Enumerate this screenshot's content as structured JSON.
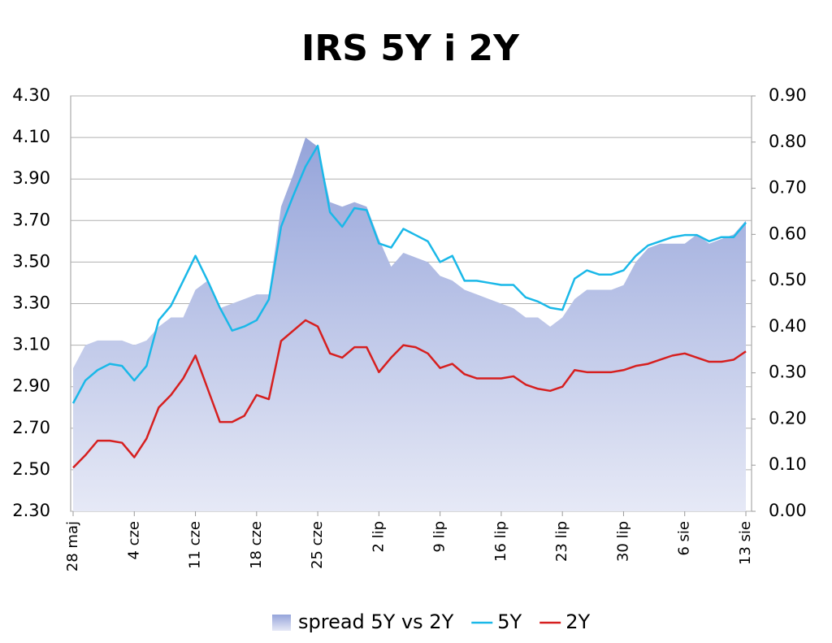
{
  "chart_data": {
    "type": "line",
    "title": "IRS 5Y i 2Y",
    "categories": [
      "28 maj",
      null,
      null,
      null,
      null,
      "4 cze",
      null,
      null,
      null,
      null,
      "11 cze",
      null,
      null,
      null,
      null,
      "18 cze",
      null,
      null,
      null,
      null,
      "25 cze",
      null,
      null,
      null,
      null,
      "2 lip",
      null,
      null,
      null,
      null,
      "9 lip",
      null,
      null,
      null,
      null,
      "16 lip",
      null,
      null,
      null,
      null,
      "23 lip",
      null,
      null,
      null,
      null,
      "30 lip",
      null,
      null,
      null,
      null,
      "6 sie",
      null,
      null,
      null,
      null,
      "13 sie"
    ],
    "series": [
      {
        "name": "spread 5Y vs 2Y",
        "type": "area",
        "axis": "y2",
        "color": "#a4b2e0",
        "values": [
          0.31,
          0.36,
          0.37,
          0.37,
          0.37,
          0.36,
          0.37,
          0.4,
          0.42,
          0.42,
          0.48,
          0.5,
          0.44,
          0.45,
          0.46,
          0.47,
          0.47,
          0.66,
          0.73,
          0.81,
          0.79,
          0.67,
          0.66,
          0.67,
          0.66,
          0.59,
          0.53,
          0.56,
          0.55,
          0.54,
          0.51,
          0.5,
          0.48,
          0.47,
          0.46,
          0.45,
          0.44,
          0.42,
          0.42,
          0.4,
          0.42,
          0.46,
          0.48,
          0.48,
          0.48,
          0.49,
          0.54,
          0.57,
          0.58,
          0.58,
          0.58,
          0.6,
          0.58,
          0.59,
          0.6,
          0.63
        ]
      },
      {
        "name": "5Y",
        "type": "line",
        "color": "#1ab8e8",
        "values": [
          2.82,
          2.93,
          2.98,
          3.01,
          3.0,
          2.93,
          3.0,
          3.22,
          3.29,
          3.41,
          3.53,
          3.41,
          3.28,
          3.17,
          3.19,
          3.22,
          3.32,
          3.67,
          3.82,
          3.96,
          4.06,
          3.74,
          3.67,
          3.76,
          3.75,
          3.59,
          3.57,
          3.66,
          3.63,
          3.6,
          3.5,
          3.53,
          3.41,
          3.41,
          3.4,
          3.39,
          3.39,
          3.33,
          3.31,
          3.28,
          3.27,
          3.42,
          3.46,
          3.44,
          3.44,
          3.46,
          3.53,
          3.58,
          3.6,
          3.62,
          3.63,
          3.63,
          3.6,
          3.62,
          3.62,
          3.69
        ]
      },
      {
        "name": "2Y",
        "type": "line",
        "color": "#d61f1f",
        "values": [
          2.51,
          2.57,
          2.64,
          2.64,
          2.63,
          2.56,
          2.65,
          2.8,
          2.86,
          2.94,
          3.05,
          2.89,
          2.73,
          2.73,
          2.76,
          2.86,
          2.84,
          3.12,
          3.17,
          3.22,
          3.19,
          3.06,
          3.04,
          3.09,
          3.09,
          2.97,
          3.04,
          3.1,
          3.09,
          3.06,
          2.99,
          3.01,
          2.96,
          2.94,
          2.94,
          2.94,
          2.95,
          2.91,
          2.89,
          2.88,
          2.9,
          2.98,
          2.97,
          2.97,
          2.97,
          2.98,
          3.0,
          3.01,
          3.03,
          3.05,
          3.06,
          3.04,
          3.02,
          3.02,
          3.03,
          3.07
        ]
      }
    ],
    "ylim": [
      2.3,
      4.3
    ],
    "yticks": [
      {
        "value": 2.3,
        "label": "2.30"
      },
      {
        "value": 2.5,
        "label": "2.50"
      },
      {
        "value": 2.7,
        "label": "2.70"
      },
      {
        "value": 2.9,
        "label": "2.90"
      },
      {
        "value": 3.1,
        "label": "3.10"
      },
      {
        "value": 3.3,
        "label": "3.30"
      },
      {
        "value": 3.5,
        "label": "3.50"
      },
      {
        "value": 3.7,
        "label": "3.70"
      },
      {
        "value": 3.9,
        "label": "3.90"
      },
      {
        "value": 4.1,
        "label": "4.10"
      },
      {
        "value": 4.3,
        "label": "4.30"
      }
    ],
    "y2lim": [
      0,
      0.9
    ],
    "y2ticks": [
      {
        "value": 0,
        "label": "0.00"
      },
      {
        "value": 0.1,
        "label": "0.10"
      },
      {
        "value": 0.2,
        "label": "0.20"
      },
      {
        "value": 0.3,
        "label": "0.30"
      },
      {
        "value": 0.4,
        "label": "0.40"
      },
      {
        "value": 0.5,
        "label": "0.50"
      },
      {
        "value": 0.6,
        "label": "0.60"
      },
      {
        "value": 0.7,
        "label": "0.70"
      },
      {
        "value": 0.8,
        "label": "0.80"
      },
      {
        "value": 0.9,
        "label": "0.90"
      }
    ],
    "grid": true,
    "legend": "bottom"
  }
}
